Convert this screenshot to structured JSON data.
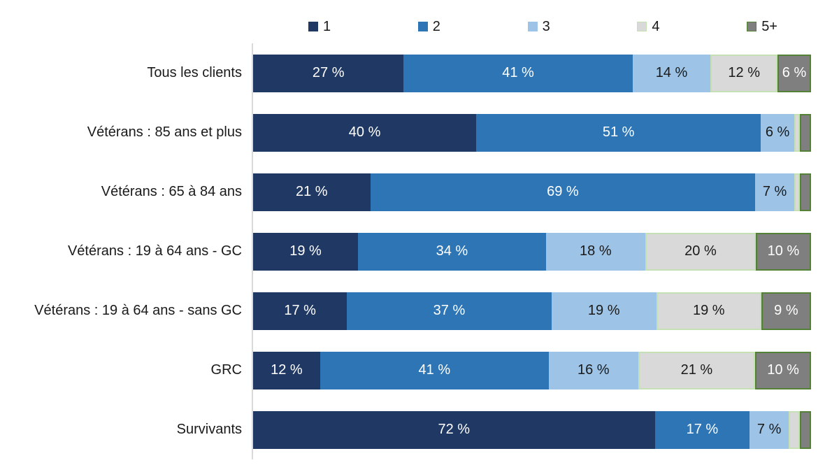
{
  "chart_data": {
    "type": "bar",
    "orientation": "horizontal",
    "stacked": true,
    "title": "",
    "value_suffix": " %",
    "label_show_min": 5,
    "axis_line_color": "#D9D9D9",
    "categories": [
      "Tous les clients",
      "Vétérans : 85 ans et plus",
      "Vétérans : 65 à 84 ans",
      "Vétérans : 19 à 64 ans - GC",
      "Vétérans : 19 à 64 ans - sans GC",
      "GRC",
      "Survivants"
    ],
    "series": [
      {
        "name": "1",
        "color": "#1F3864",
        "border": "",
        "text_color": "#FFFFFF",
        "values": [
          27,
          40,
          21,
          19,
          17,
          12,
          72
        ]
      },
      {
        "name": "2",
        "color": "#2E75B6",
        "border": "",
        "text_color": "#FFFFFF",
        "values": [
          41,
          51,
          69,
          34,
          37,
          41,
          17
        ]
      },
      {
        "name": "3",
        "color": "#9DC3E6",
        "border": "",
        "text_color": "#1a1a1a",
        "values": [
          14,
          6,
          7,
          18,
          19,
          16,
          7
        ]
      },
      {
        "name": "4",
        "color": "#D9D9D9",
        "border": "#C5E0B4",
        "text_color": "#1a1a1a",
        "values": [
          12,
          1,
          1,
          20,
          19,
          21,
          2
        ]
      },
      {
        "name": "5+",
        "color": "#7F7F7F",
        "border": "#538135",
        "text_color": "#FFFFFF",
        "values": [
          6,
          2,
          2,
          10,
          9,
          10,
          2
        ]
      }
    ],
    "legend": {
      "entries": [
        "1",
        "2",
        "3",
        "4",
        "5+"
      ],
      "position": "top"
    }
  }
}
